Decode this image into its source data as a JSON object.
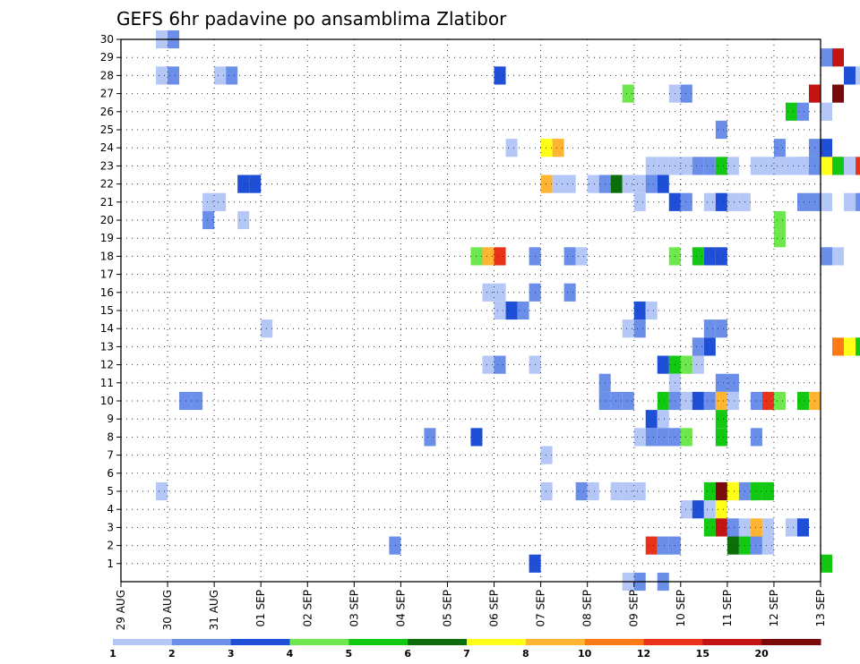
{
  "chart_data": {
    "type": "heatmap",
    "title": "GEFS 6hr padavine po ansamblima Zlatibor",
    "x_ticks": [
      "29 AUG",
      "30 AUG",
      "31 AUG",
      "01 SEP",
      "02 SEP",
      "03 SEP",
      "04 SEP",
      "05 SEP",
      "06 SEP",
      "07 SEP",
      "08 SEP",
      "09 SEP",
      "10 SEP",
      "11 SEP",
      "12 SEP",
      "13 SEP"
    ],
    "x_range": [
      "29 AUG 00Z",
      "13 SEP 00Z"
    ],
    "time_step_hours": 6,
    "y_ticks": [
      1,
      2,
      3,
      4,
      5,
      6,
      7,
      8,
      9,
      10,
      11,
      12,
      13,
      14,
      15,
      16,
      17,
      18,
      19,
      20,
      21,
      22,
      23,
      24,
      25,
      26,
      27,
      28,
      29,
      30
    ],
    "ylim": [
      0,
      30
    ],
    "grid": true,
    "colorbar": {
      "labels": [
        "1",
        "2",
        "3",
        "4",
        "5",
        "6",
        "7",
        "8",
        "10",
        "12",
        "15",
        "20"
      ],
      "colors": [
        "#b4c7f7",
        "#6b8fe8",
        "#1f4fd6",
        "#6ee64d",
        "#13c813",
        "#0b6e0b",
        "#ffff19",
        "#ffb433",
        "#ff7a14",
        "#e8321a",
        "#c31414",
        "#7a0a0a"
      ]
    },
    "cells": [
      [
        3,
        29,
        1
      ],
      [
        4,
        29,
        2
      ],
      [
        3,
        27,
        1
      ],
      [
        4,
        27,
        2
      ],
      [
        8,
        27,
        1
      ],
      [
        9,
        27,
        2
      ],
      [
        32,
        27,
        3
      ],
      [
        60,
        28,
        2
      ],
      [
        61,
        28,
        11
      ],
      [
        62,
        27,
        3
      ],
      [
        63,
        27,
        1
      ],
      [
        64,
        27,
        2
      ],
      [
        68,
        27,
        1
      ],
      [
        43,
        26,
        4
      ],
      [
        47,
        26,
        1
      ],
      [
        48,
        26,
        2
      ],
      [
        59,
        26,
        11
      ],
      [
        57,
        25,
        5
      ],
      [
        58,
        25,
        2
      ],
      [
        65,
        25,
        2
      ],
      [
        66,
        25,
        5
      ],
      [
        64,
        24,
        1
      ],
      [
        51,
        24,
        2
      ],
      [
        60,
        25,
        1
      ],
      [
        68,
        25,
        3
      ],
      [
        61,
        26,
        12
      ],
      [
        57,
        22,
        1
      ],
      [
        58,
        22,
        2
      ],
      [
        59,
        22,
        6
      ],
      [
        60,
        22,
        7
      ],
      [
        61,
        22,
        9
      ],
      [
        62,
        22,
        2
      ],
      [
        66,
        22,
        1
      ],
      [
        67,
        22,
        4
      ],
      [
        68,
        22,
        7
      ],
      [
        33,
        23,
        1
      ],
      [
        36,
        23,
        7
      ],
      [
        37,
        23,
        8
      ],
      [
        56,
        23,
        2
      ],
      [
        59,
        23,
        2
      ],
      [
        60,
        23,
        3
      ],
      [
        45,
        22,
        1
      ],
      [
        46,
        22,
        1
      ],
      [
        47,
        22,
        1
      ],
      [
        48,
        22,
        1
      ],
      [
        49,
        22,
        2
      ],
      [
        50,
        22,
        2
      ],
      [
        51,
        22,
        5
      ],
      [
        52,
        22,
        1
      ],
      [
        54,
        22,
        1
      ],
      [
        55,
        22,
        1
      ],
      [
        56,
        22,
        1
      ],
      [
        58,
        22,
        1
      ],
      [
        59,
        22,
        2
      ],
      [
        61,
        22,
        5
      ],
      [
        62,
        22,
        1
      ],
      [
        63,
        22,
        10
      ],
      [
        64,
        22,
        1
      ],
      [
        65,
        22,
        1
      ],
      [
        66,
        22,
        1
      ],
      [
        68,
        22,
        1
      ],
      [
        69,
        22,
        2
      ],
      [
        70,
        22,
        7
      ],
      [
        71,
        22,
        3
      ],
      [
        10,
        21,
        3
      ],
      [
        11,
        21,
        3
      ],
      [
        36,
        21,
        8
      ],
      [
        37,
        21,
        1
      ],
      [
        38,
        21,
        1
      ],
      [
        40,
        21,
        1
      ],
      [
        41,
        21,
        2
      ],
      [
        42,
        21,
        6
      ],
      [
        43,
        21,
        1
      ],
      [
        44,
        21,
        1
      ],
      [
        45,
        21,
        2
      ],
      [
        46,
        21,
        3
      ],
      [
        7,
        20,
        1
      ],
      [
        8,
        20,
        1
      ],
      [
        44,
        20,
        1
      ],
      [
        47,
        20,
        3
      ],
      [
        48,
        20,
        2
      ],
      [
        50,
        20,
        1
      ],
      [
        51,
        20,
        3
      ],
      [
        52,
        20,
        1
      ],
      [
        53,
        20,
        1
      ],
      [
        58,
        20,
        2
      ],
      [
        59,
        20,
        2
      ],
      [
        60,
        20,
        1
      ],
      [
        62,
        20,
        1
      ],
      [
        63,
        20,
        2
      ],
      [
        64,
        20,
        1
      ],
      [
        72,
        20,
        3
      ],
      [
        73,
        20,
        2
      ],
      [
        7,
        19,
        2
      ],
      [
        10,
        19,
        1
      ],
      [
        56,
        19,
        4
      ],
      [
        65,
        19,
        1
      ],
      [
        66,
        19,
        2
      ],
      [
        67,
        19,
        1
      ],
      [
        70,
        19,
        1
      ],
      [
        71,
        19,
        3
      ],
      [
        72,
        19,
        3
      ],
      [
        56,
        18,
        4
      ],
      [
        47,
        17,
        4
      ],
      [
        49,
        17,
        5
      ],
      [
        50,
        17,
        3
      ],
      [
        51,
        17,
        3
      ],
      [
        60,
        17,
        2
      ],
      [
        61,
        17,
        1
      ],
      [
        30,
        17,
        4
      ],
      [
        31,
        17,
        8
      ],
      [
        32,
        17,
        10
      ],
      [
        35,
        17,
        2
      ],
      [
        38,
        17,
        2
      ],
      [
        39,
        17,
        1
      ],
      [
        68,
        16,
        2
      ],
      [
        69,
        16,
        1
      ],
      [
        70,
        16,
        1
      ],
      [
        31,
        15,
        1
      ],
      [
        32,
        15,
        1
      ],
      [
        35,
        15,
        2
      ],
      [
        38,
        15,
        2
      ],
      [
        32,
        14,
        1
      ],
      [
        33,
        14,
        3
      ],
      [
        34,
        14,
        2
      ],
      [
        44,
        14,
        3
      ],
      [
        45,
        14,
        1
      ],
      [
        64,
        15,
        1
      ],
      [
        65,
        15,
        1
      ],
      [
        66,
        15,
        1
      ],
      [
        67,
        15,
        3
      ],
      [
        68,
        15,
        1
      ],
      [
        69,
        15,
        1
      ],
      [
        70,
        15,
        3
      ],
      [
        69,
        14,
        3
      ],
      [
        70,
        14,
        3
      ],
      [
        12,
        13,
        1
      ],
      [
        43,
        13,
        1
      ],
      [
        44,
        13,
        2
      ],
      [
        50,
        13,
        2
      ],
      [
        51,
        13,
        2
      ],
      [
        70,
        13,
        6
      ],
      [
        71,
        13,
        3
      ],
      [
        49,
        12,
        2
      ],
      [
        50,
        12,
        3
      ],
      [
        61,
        12,
        9
      ],
      [
        62,
        12,
        7
      ],
      [
        63,
        12,
        5
      ],
      [
        31,
        11,
        1
      ],
      [
        32,
        11,
        2
      ],
      [
        35,
        11,
        1
      ],
      [
        46,
        11,
        3
      ],
      [
        47,
        11,
        5
      ],
      [
        48,
        11,
        4
      ],
      [
        49,
        11,
        1
      ],
      [
        47,
        10,
        1
      ],
      [
        41,
        10,
        2
      ],
      [
        51,
        10,
        2
      ],
      [
        52,
        10,
        2
      ],
      [
        5,
        9,
        2
      ],
      [
        6,
        9,
        2
      ],
      [
        41,
        9,
        2
      ],
      [
        42,
        9,
        2
      ],
      [
        43,
        9,
        2
      ],
      [
        46,
        9,
        5
      ],
      [
        47,
        9,
        2
      ],
      [
        48,
        9,
        1
      ],
      [
        49,
        9,
        3
      ],
      [
        50,
        9,
        2
      ],
      [
        51,
        9,
        8
      ],
      [
        52,
        9,
        1
      ],
      [
        54,
        9,
        2
      ],
      [
        55,
        9,
        10
      ],
      [
        56,
        9,
        4
      ],
      [
        58,
        9,
        5
      ],
      [
        59,
        9,
        8
      ],
      [
        45,
        8,
        3
      ],
      [
        46,
        8,
        1
      ],
      [
        51,
        8,
        5
      ],
      [
        51,
        7,
        1
      ],
      [
        44,
        7,
        1
      ],
      [
        45,
        7,
        2
      ],
      [
        46,
        7,
        2
      ],
      [
        47,
        7,
        2
      ],
      [
        48,
        7,
        4
      ],
      [
        51,
        7,
        5
      ],
      [
        26,
        7,
        2
      ],
      [
        30,
        7,
        3
      ],
      [
        54,
        7,
        2
      ],
      [
        36,
        6,
        1
      ],
      [
        3,
        4,
        1
      ],
      [
        36,
        4,
        1
      ],
      [
        39,
        4,
        2
      ],
      [
        40,
        4,
        1
      ],
      [
        42,
        4,
        1
      ],
      [
        43,
        4,
        1
      ],
      [
        44,
        4,
        1
      ],
      [
        50,
        4,
        5
      ],
      [
        51,
        4,
        12
      ],
      [
        52,
        4,
        7
      ],
      [
        53,
        4,
        2
      ],
      [
        54,
        4,
        5
      ],
      [
        55,
        4,
        5
      ],
      [
        48,
        3,
        1
      ],
      [
        49,
        3,
        3
      ],
      [
        50,
        3,
        1
      ],
      [
        51,
        3,
        7
      ],
      [
        50,
        2,
        5
      ],
      [
        51,
        2,
        11
      ],
      [
        52,
        2,
        2
      ],
      [
        53,
        2,
        1
      ],
      [
        54,
        2,
        8
      ],
      [
        55,
        2,
        1
      ],
      [
        57,
        2,
        1
      ],
      [
        58,
        2,
        3
      ],
      [
        23,
        1,
        2
      ],
      [
        45,
        1,
        10
      ],
      [
        46,
        1,
        2
      ],
      [
        47,
        1,
        2
      ],
      [
        52,
        1,
        6
      ],
      [
        53,
        1,
        5
      ],
      [
        54,
        1,
        2
      ],
      [
        55,
        1,
        1
      ],
      [
        35,
        0,
        3
      ],
      [
        60,
        0,
        5
      ],
      [
        43,
        -1,
        1
      ],
      [
        44,
        -1,
        2
      ],
      [
        46,
        -1,
        2
      ]
    ]
  }
}
